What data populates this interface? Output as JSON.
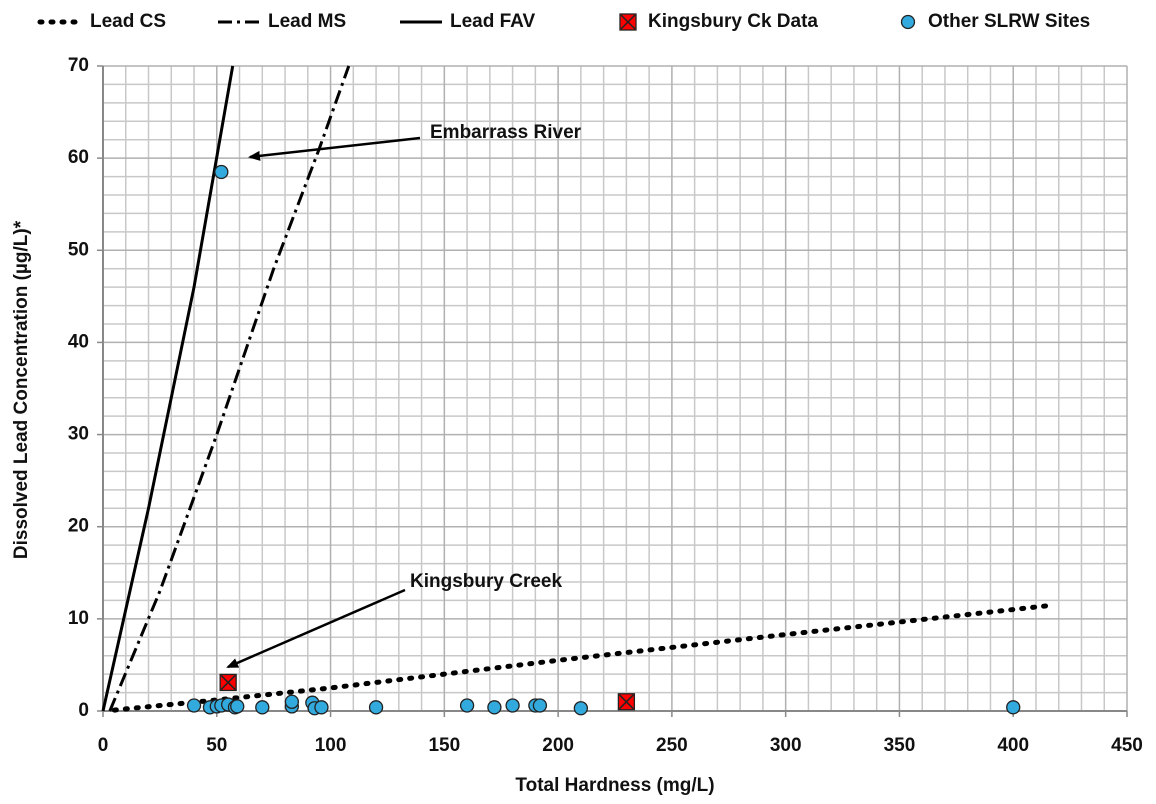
{
  "chart_data": {
    "type": "scatter",
    "x_label": "Total Hardness (mg/L)",
    "y_label": "Dissolved Lead Concentration (µg/L)*",
    "xlim": [
      0,
      450
    ],
    "ylim": [
      0,
      70
    ],
    "xticks": [
      0,
      50,
      100,
      150,
      200,
      250,
      300,
      350,
      400,
      450
    ],
    "yticks": [
      0,
      10,
      20,
      30,
      40,
      50,
      60,
      70
    ],
    "x_minor_grid": [
      10,
      20,
      30,
      40,
      60,
      70,
      80,
      90,
      110,
      120,
      130,
      140,
      160,
      170,
      180,
      190,
      210,
      220,
      230,
      240,
      260,
      270,
      280,
      290,
      310,
      320,
      330,
      340,
      360,
      370,
      380,
      390,
      410,
      420,
      430,
      440
    ],
    "y_minor_grid": [
      2,
      4,
      6,
      8,
      12,
      14,
      16,
      18,
      22,
      24,
      26,
      28,
      32,
      34,
      36,
      38,
      42,
      44,
      46,
      48,
      52,
      54,
      56,
      58,
      62,
      64,
      66,
      68
    ],
    "grid": true,
    "legend": "top",
    "series": [
      {
        "name": "Lead CS",
        "color": "#000000",
        "style": "dotted",
        "x": [
          5,
          50,
          100,
          200,
          300,
          418
        ],
        "values": [
          0.1,
          1.2,
          2.5,
          5.5,
          8.3,
          11.5
        ]
      },
      {
        "name": "Lead MS",
        "color": "#000000",
        "style": "dashdot",
        "x": [
          3,
          25,
          50,
          75,
          95,
          108
        ],
        "values": [
          0,
          13,
          30,
          48,
          61,
          70
        ]
      },
      {
        "name": "Lead FAV",
        "color": "#000000",
        "style": "solid",
        "x": [
          0,
          20,
          40,
          57
        ],
        "values": [
          0,
          22,
          46,
          70
        ]
      },
      {
        "name": "Kingsbury Ck Data",
        "color": "#ff0000",
        "marker": "square-x",
        "x": [
          55,
          230
        ],
        "values": [
          3.1,
          1.0
        ]
      },
      {
        "name": "Other SLRW Sites",
        "color": "#33aadd",
        "marker": "circle",
        "x": [
          40,
          47,
          50,
          52,
          55,
          58,
          59,
          52,
          70,
          83,
          83,
          92,
          93,
          96,
          120,
          160,
          172,
          180,
          190,
          192,
          210,
          400
        ],
        "values": [
          0.6,
          0.4,
          0.5,
          0.6,
          0.7,
          0.4,
          0.5,
          58.5,
          0.4,
          0.5,
          1.0,
          0.9,
          0.3,
          0.4,
          0.4,
          0.6,
          0.4,
          0.6,
          0.6,
          0.6,
          0.3,
          0.4
        ]
      }
    ],
    "annotations": [
      "Embarrass River",
      "Kingsbury Creek"
    ]
  }
}
